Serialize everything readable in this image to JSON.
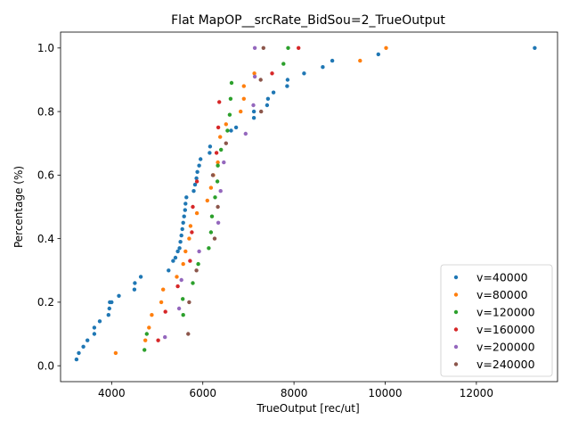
{
  "chart_data": {
    "type": "scatter",
    "title": "Flat MapOP__srcRate_BidSou=2_TrueOutput",
    "xlabel": "TrueOutput [rec/ut]",
    "ylabel": "Percentage (%)",
    "xlim": [
      2880,
      13780
    ],
    "ylim": [
      -0.05,
      1.05
    ],
    "xticks": [
      4000,
      6000,
      8000,
      10000,
      12000
    ],
    "xtick_labels": [
      "4000",
      "6000",
      "8000",
      "10000",
      "12000"
    ],
    "yticks": [
      0.0,
      0.2,
      0.4,
      0.6,
      0.8,
      1.0
    ],
    "ytick_labels": [
      "0.0",
      "0.2",
      "0.4",
      "0.6",
      "0.8",
      "1.0"
    ],
    "grid": false,
    "legend_position": "lower-right",
    "series": [
      {
        "name": "v=40000",
        "color": "#1f77b4",
        "points": [
          [
            3230,
            0.02
          ],
          [
            3280,
            0.04
          ],
          [
            3380,
            0.06
          ],
          [
            3470,
            0.08
          ],
          [
            3620,
            0.1
          ],
          [
            3620,
            0.12
          ],
          [
            3740,
            0.14
          ],
          [
            3930,
            0.16
          ],
          [
            3950,
            0.18
          ],
          [
            3960,
            0.2
          ],
          [
            4000,
            0.2
          ],
          [
            4160,
            0.22
          ],
          [
            4500,
            0.24
          ],
          [
            4510,
            0.26
          ],
          [
            4640,
            0.28
          ],
          [
            5250,
            0.3
          ],
          [
            5350,
            0.33
          ],
          [
            5400,
            0.34
          ],
          [
            5450,
            0.36
          ],
          [
            5490,
            0.37
          ],
          [
            5510,
            0.39
          ],
          [
            5530,
            0.41
          ],
          [
            5550,
            0.43
          ],
          [
            5570,
            0.45
          ],
          [
            5590,
            0.47
          ],
          [
            5610,
            0.49
          ],
          [
            5620,
            0.51
          ],
          [
            5640,
            0.53
          ],
          [
            5800,
            0.55
          ],
          [
            5830,
            0.57
          ],
          [
            5860,
            0.59
          ],
          [
            5880,
            0.61
          ],
          [
            5920,
            0.63
          ],
          [
            5950,
            0.65
          ],
          [
            6150,
            0.67
          ],
          [
            6160,
            0.69
          ],
          [
            6620,
            0.74
          ],
          [
            6730,
            0.75
          ],
          [
            7120,
            0.78
          ],
          [
            7120,
            0.8
          ],
          [
            7410,
            0.82
          ],
          [
            7430,
            0.84
          ],
          [
            7550,
            0.86
          ],
          [
            7850,
            0.88
          ],
          [
            7860,
            0.9
          ],
          [
            8220,
            0.92
          ],
          [
            8630,
            0.94
          ],
          [
            8840,
            0.96
          ],
          [
            9850,
            0.98
          ],
          [
            13280,
            1.0
          ]
        ]
      },
      {
        "name": "v=80000",
        "color": "#ff7f0e",
        "points": [
          [
            4090,
            0.04
          ],
          [
            4740,
            0.08
          ],
          [
            4820,
            0.12
          ],
          [
            4880,
            0.16
          ],
          [
            5090,
            0.2
          ],
          [
            5130,
            0.24
          ],
          [
            5430,
            0.28
          ],
          [
            5570,
            0.32
          ],
          [
            5620,
            0.36
          ],
          [
            5700,
            0.4
          ],
          [
            5730,
            0.44
          ],
          [
            5870,
            0.48
          ],
          [
            6100,
            0.52
          ],
          [
            6180,
            0.56
          ],
          [
            6230,
            0.6
          ],
          [
            6330,
            0.64
          ],
          [
            6380,
            0.72
          ],
          [
            6510,
            0.76
          ],
          [
            6830,
            0.8
          ],
          [
            6900,
            0.84
          ],
          [
            6900,
            0.88
          ],
          [
            7130,
            0.92
          ],
          [
            9450,
            0.96
          ],
          [
            10020,
            1.0
          ]
        ]
      },
      {
        "name": "v=120000",
        "color": "#2ca02c",
        "points": [
          [
            4720,
            0.05
          ],
          [
            4770,
            0.1
          ],
          [
            5570,
            0.16
          ],
          [
            5560,
            0.21
          ],
          [
            5780,
            0.26
          ],
          [
            5900,
            0.32
          ],
          [
            6130,
            0.37
          ],
          [
            6180,
            0.42
          ],
          [
            6200,
            0.47
          ],
          [
            6270,
            0.53
          ],
          [
            6320,
            0.58
          ],
          [
            6330,
            0.63
          ],
          [
            6400,
            0.68
          ],
          [
            6540,
            0.74
          ],
          [
            6590,
            0.79
          ],
          [
            6610,
            0.84
          ],
          [
            6630,
            0.89
          ],
          [
            7770,
            0.95
          ],
          [
            7870,
            1.0
          ]
        ]
      },
      {
        "name": "v=160000",
        "color": "#d62728",
        "points": [
          [
            5020,
            0.08
          ],
          [
            5180,
            0.17
          ],
          [
            5450,
            0.25
          ],
          [
            5720,
            0.33
          ],
          [
            5760,
            0.42
          ],
          [
            5780,
            0.5
          ],
          [
            5870,
            0.58
          ],
          [
            6300,
            0.67
          ],
          [
            6340,
            0.75
          ],
          [
            6360,
            0.83
          ],
          [
            7520,
            0.92
          ],
          [
            8100,
            1.0
          ]
        ]
      },
      {
        "name": "v=200000",
        "color": "#9467bd",
        "points": [
          [
            5170,
            0.09
          ],
          [
            5480,
            0.18
          ],
          [
            5530,
            0.27
          ],
          [
            5920,
            0.36
          ],
          [
            6340,
            0.45
          ],
          [
            6390,
            0.55
          ],
          [
            6460,
            0.64
          ],
          [
            6940,
            0.73
          ],
          [
            7110,
            0.82
          ],
          [
            7140,
            0.91
          ],
          [
            7140,
            1.0
          ]
        ]
      },
      {
        "name": "v=240000",
        "color": "#8c564b",
        "points": [
          [
            5680,
            0.1
          ],
          [
            5700,
            0.2
          ],
          [
            5860,
            0.3
          ],
          [
            6260,
            0.4
          ],
          [
            6330,
            0.5
          ],
          [
            6220,
            0.6
          ],
          [
            6510,
            0.7
          ],
          [
            7280,
            0.8
          ],
          [
            7270,
            0.9
          ],
          [
            7330,
            1.0
          ]
        ]
      }
    ]
  }
}
